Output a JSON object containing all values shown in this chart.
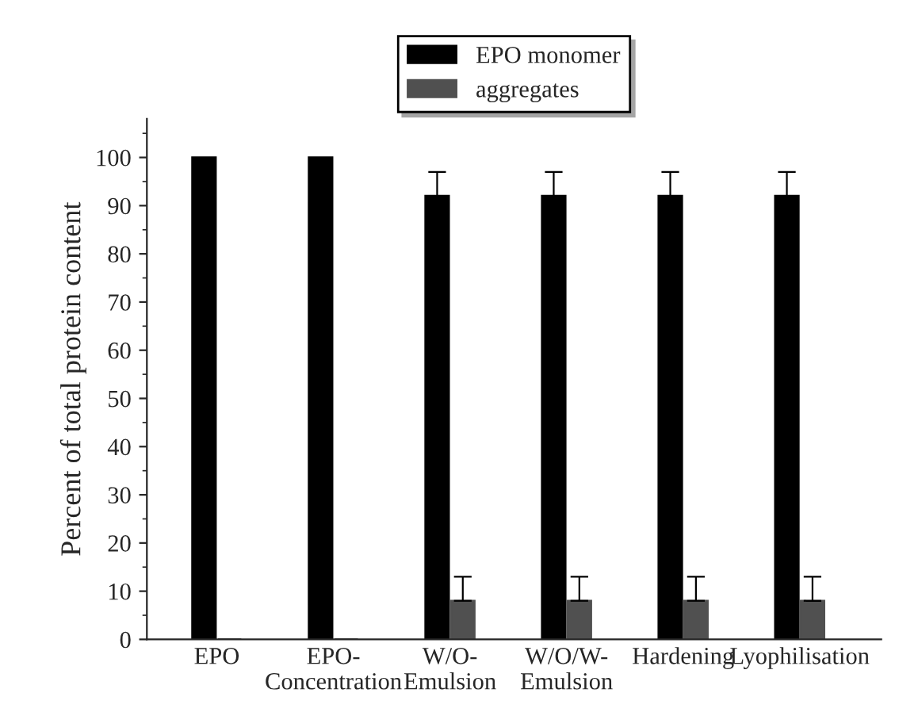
{
  "chart_data": {
    "type": "bar",
    "ylabel": "Percent of total protein content",
    "categories": [
      "EPO",
      "EPO-\nConcentration",
      "W/O-\nEmulsion",
      "W/O/W-\nEmulsion",
      "Hardening",
      "Lyophilisation"
    ],
    "series": [
      {
        "name": "EPO monomer",
        "color": "#000000",
        "values": [
          100,
          100,
          92,
          92,
          92,
          92
        ],
        "errors": [
          null,
          null,
          5,
          5,
          5,
          5
        ]
      },
      {
        "name": "aggregates",
        "color": "#505050",
        "values": [
          0,
          0,
          8,
          8,
          8,
          8
        ],
        "errors": [
          null,
          null,
          5,
          5,
          5,
          5
        ]
      }
    ],
    "ylim": [
      0,
      108
    ],
    "yticks": [
      0,
      10,
      20,
      30,
      40,
      50,
      60,
      70,
      80,
      90,
      100
    ],
    "grid": false,
    "legend": "top",
    "tick_labels": "xy"
  }
}
